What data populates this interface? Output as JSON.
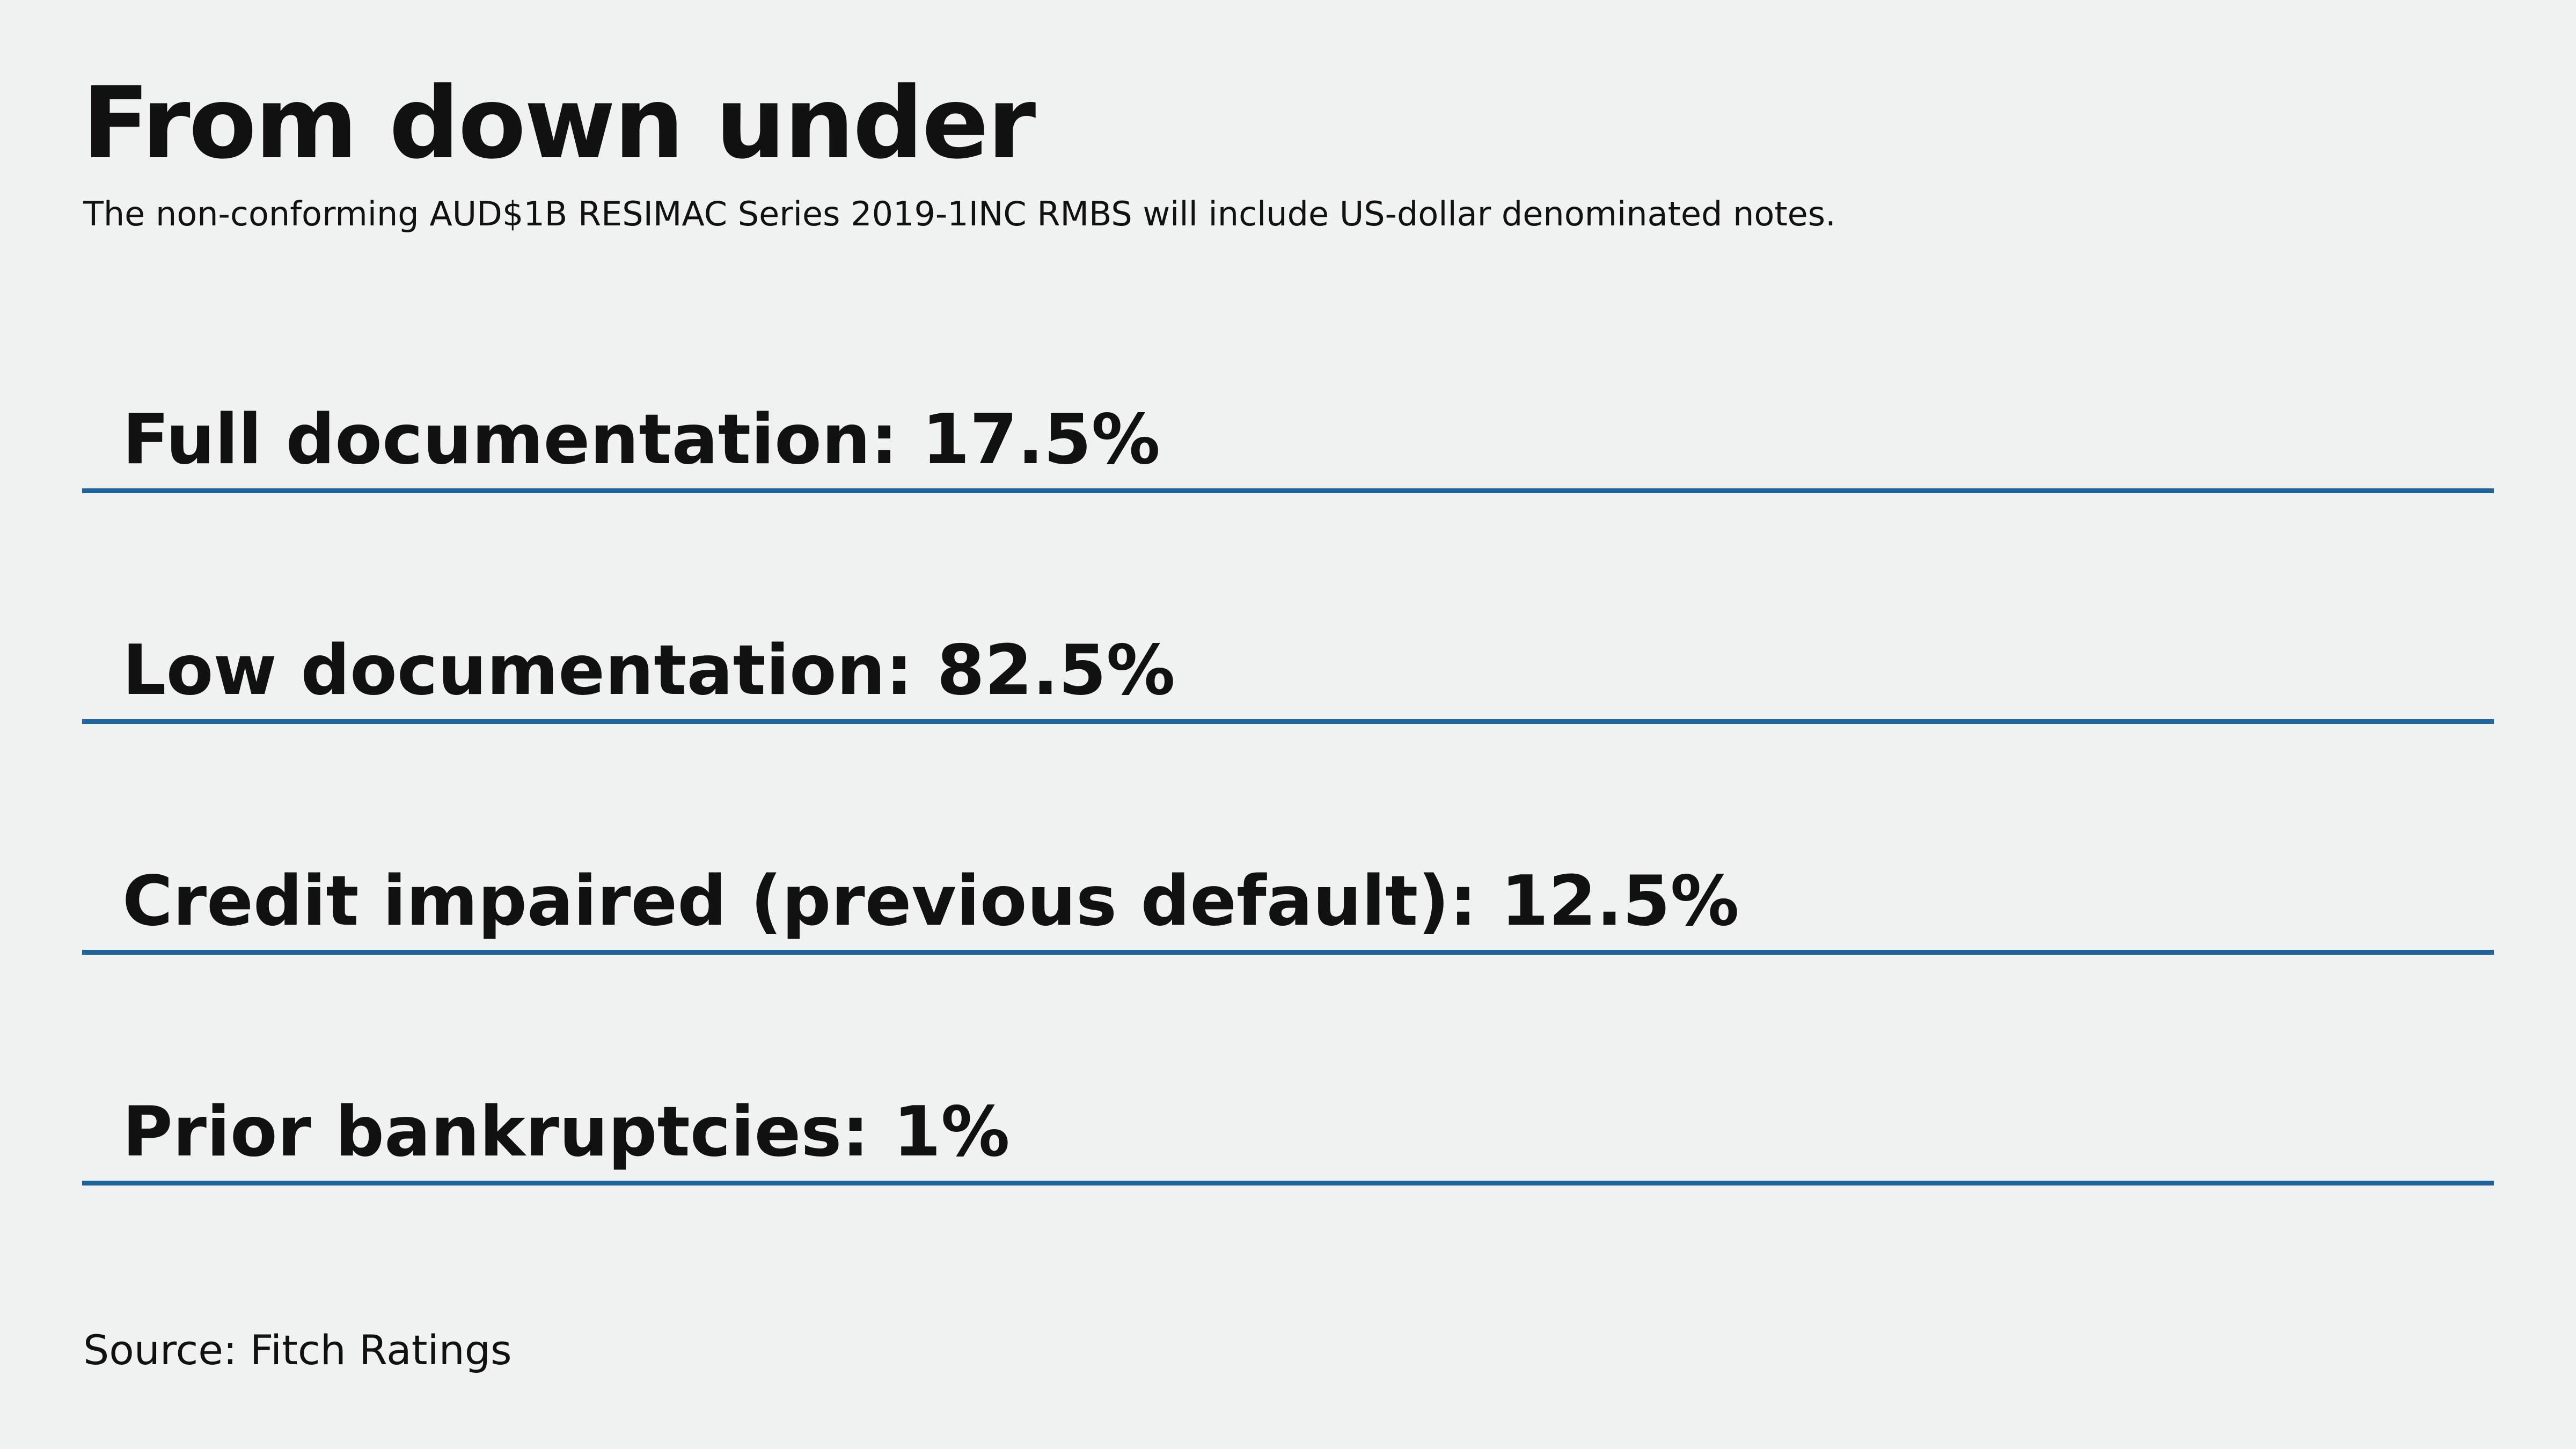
{
  "title": "From down under",
  "subtitle": "The non-conforming AUD$1B RESIMAC Series 2019-1INC RMBS will include US-dollar denominated notes.",
  "stats": [
    {
      "text": "Full documentation: 17.5%"
    },
    {
      "text": "Low documentation: 82.5%"
    },
    {
      "text": "Credit impaired (previous default): 12.5%"
    },
    {
      "text": "Prior bankruptcies: 1%"
    }
  ],
  "source": "Source: Fitch Ratings",
  "colors": {
    "background": "#f0f2f1",
    "text": "#111111",
    "rule": "#1f639c"
  }
}
